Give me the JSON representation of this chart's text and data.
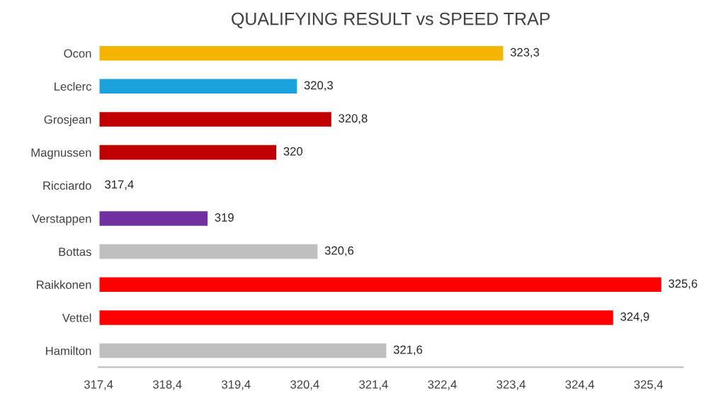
{
  "chart_data": {
    "type": "bar",
    "orientation": "horizontal",
    "title": "QUALIFYING RESULT vs SPEED TRAP",
    "categories": [
      "Ocon",
      "Leclerc",
      "Grosjean",
      "Magnussen",
      "Ricciardo",
      "Verstappen",
      "Bottas",
      "Raikkonen",
      "Vettel",
      "Hamilton"
    ],
    "values": [
      323.3,
      320.3,
      320.8,
      320,
      317.4,
      319,
      320.6,
      325.6,
      324.9,
      321.6
    ],
    "value_labels": [
      "323,3",
      "320,3",
      "320,8",
      "320",
      "317,4",
      "319",
      "320,6",
      "325,6",
      "324,9",
      "321,6"
    ],
    "colors": [
      "#f5b400",
      "#1ba1dc",
      "#c00000",
      "#c00000",
      null,
      "#7030a0",
      "#bfbfbf",
      "#ff0000",
      "#ff0000",
      "#bfbfbf"
    ],
    "xlim": [
      317.4,
      325.9
    ],
    "xticks": [
      {
        "value": 317.4,
        "label": "317,4"
      },
      {
        "value": 318.4,
        "label": "318,4"
      },
      {
        "value": 319.4,
        "label": "319,4"
      },
      {
        "value": 320.4,
        "label": "320,4"
      },
      {
        "value": 321.4,
        "label": "321,4"
      },
      {
        "value": 322.4,
        "label": "322,4"
      },
      {
        "value": 323.4,
        "label": "323,4"
      },
      {
        "value": 324.4,
        "label": "324,4"
      },
      {
        "value": 325.4,
        "label": "325,4"
      }
    ],
    "grid": false,
    "legend": false
  }
}
